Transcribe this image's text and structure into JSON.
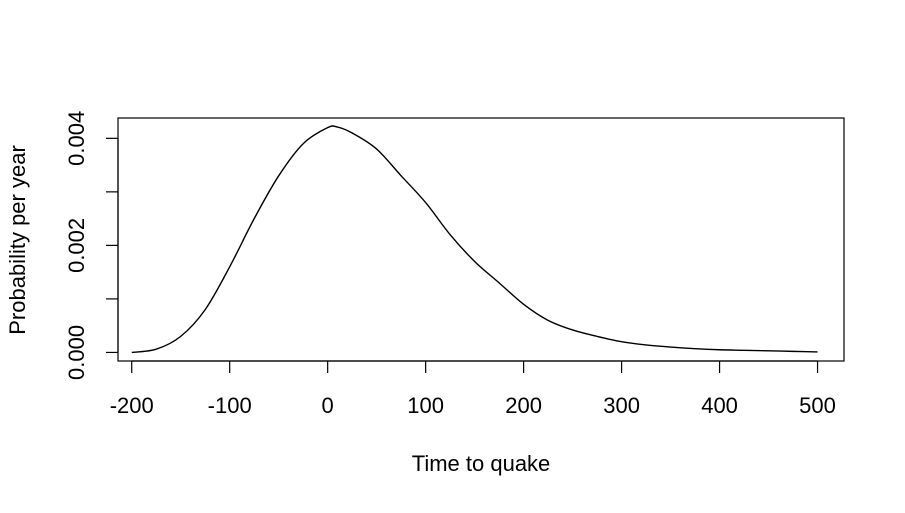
{
  "chart_data": {
    "type": "line",
    "xlabel": "Time to quake",
    "ylabel": "Probability per year",
    "xlim": [
      -214,
      527
    ],
    "ylim": [
      -0.00016,
      0.00438
    ],
    "xticks": [
      -200,
      -100,
      0,
      100,
      200,
      300,
      400,
      500
    ],
    "yticks": [
      0.0,
      0.001,
      0.002,
      0.003,
      0.004
    ],
    "ytick_labels": [
      {
        "value": 0.0,
        "label": "0.000"
      },
      {
        "value": 0.002,
        "label": "0.002"
      },
      {
        "value": 0.004,
        "label": "0.004"
      }
    ],
    "grid": false,
    "series": [
      {
        "x": [
          -200,
          -175,
          -150,
          -125,
          -100,
          -75,
          -50,
          -25,
          0,
          10,
          25,
          50,
          75,
          100,
          125,
          150,
          175,
          200,
          225,
          250,
          275,
          300,
          325,
          350,
          375,
          400,
          425,
          450,
          475,
          500
        ],
        "y": [
          0.0,
          6e-05,
          0.0003,
          0.0008,
          0.0016,
          0.0025,
          0.0033,
          0.0039,
          0.0042,
          0.00421,
          0.0041,
          0.0038,
          0.0033,
          0.0028,
          0.0022,
          0.0017,
          0.0013,
          0.0009,
          0.0006,
          0.00042,
          0.0003,
          0.0002,
          0.00014,
          0.0001,
          7e-05,
          5e-05,
          4e-05,
          3e-05,
          2e-05,
          1e-05
        ]
      }
    ]
  }
}
